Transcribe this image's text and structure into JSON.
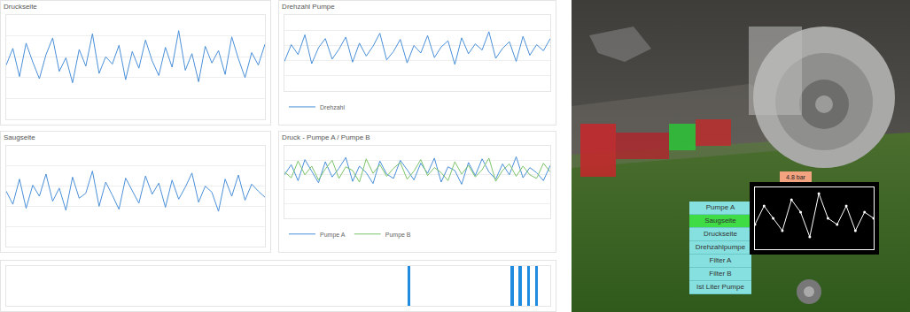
{
  "chart_data": [
    {
      "type": "line",
      "title": "Druckseite",
      "x": [
        0,
        1,
        2,
        3,
        4,
        5,
        6,
        7,
        8,
        9,
        10,
        11,
        12,
        13,
        14,
        15,
        16,
        17,
        18,
        19,
        20,
        21,
        22,
        23,
        24,
        25,
        26,
        27,
        28,
        29,
        30,
        31,
        32,
        33,
        34,
        35,
        36,
        37,
        38,
        39
      ],
      "series": [
        {
          "color": "#4a90d9",
          "values": [
            5.2,
            6.8,
            4.1,
            7.3,
            5.5,
            3.9,
            6.2,
            7.8,
            4.6,
            5.9,
            3.5,
            6.7,
            5.1,
            8.2,
            4.4,
            6.0,
            5.3,
            7.1,
            3.8,
            6.5,
            4.9,
            7.6,
            5.6,
            4.2,
            6.9,
            5.0,
            8.5,
            4.7,
            6.3,
            3.6,
            7.0,
            5.4,
            6.6,
            4.3,
            7.9,
            5.8,
            4.0,
            6.4,
            5.2,
            7.2
          ]
        }
      ],
      "xlim": [
        0,
        39
      ],
      "ylim": [
        0,
        10
      ],
      "yticks": [
        0,
        2,
        4,
        6,
        8,
        10
      ],
      "grid": true,
      "tick_labels": false
    },
    {
      "type": "line",
      "title": "Drehzahl Pumpe",
      "x": [
        0,
        1,
        2,
        3,
        4,
        5,
        6,
        7,
        8,
        9,
        10,
        11,
        12,
        13,
        14,
        15,
        16,
        17,
        18,
        19,
        20,
        21,
        22,
        23,
        24,
        25,
        26,
        27,
        28,
        29,
        30,
        31,
        32,
        33,
        34,
        35,
        36,
        37,
        38,
        39
      ],
      "series": [
        {
          "name": "Drehzahl",
          "color": "#4a90d9",
          "values": [
            3.9,
            6.1,
            4.8,
            7.4,
            3.6,
            5.7,
            6.9,
            4.2,
            5.5,
            7.1,
            3.8,
            6.3,
            4.6,
            5.9,
            7.6,
            4.1,
            5.2,
            6.8,
            3.7,
            6.0,
            5.0,
            7.3,
            4.4,
            5.8,
            6.6,
            3.5,
            7.0,
            4.9,
            6.2,
            5.4,
            7.8,
            4.3,
            5.6,
            6.5,
            3.9,
            7.2,
            4.7,
            6.1,
            5.3,
            6.9
          ]
        }
      ],
      "xlim": [
        0,
        39
      ],
      "ylim": [
        0,
        10
      ],
      "yticks": [
        0,
        2,
        4,
        6,
        8,
        10
      ],
      "grid": true,
      "tick_labels": false,
      "legend": "bottom-left"
    },
    {
      "type": "line",
      "title": "Saugseite",
      "x": [
        0,
        1,
        2,
        3,
        4,
        5,
        6,
        7,
        8,
        9,
        10,
        11,
        12,
        13,
        14,
        15,
        16,
        17,
        18,
        19,
        20,
        21,
        22,
        23,
        24,
        25,
        26,
        27,
        28,
        29,
        30,
        31,
        32,
        33,
        34,
        35,
        36,
        37,
        38,
        39
      ],
      "series": [
        {
          "color": "#4a90d9",
          "values": [
            5.5,
            4.2,
            6.7,
            3.8,
            6.1,
            5.0,
            7.2,
            4.5,
            5.8,
            3.6,
            6.9,
            4.8,
            5.3,
            7.5,
            4.0,
            6.4,
            5.1,
            3.7,
            6.8,
            5.6,
            4.3,
            7.0,
            5.2,
            6.3,
            3.9,
            6.6,
            4.7,
            5.9,
            7.3,
            4.4,
            6.0,
            5.4,
            3.5,
            6.7,
            5.0,
            7.1,
            4.6,
            6.2,
            5.5,
            4.9
          ]
        }
      ],
      "xlim": [
        0,
        39
      ],
      "ylim": [
        0,
        10
      ],
      "yticks": [
        0,
        2,
        4,
        6,
        8,
        10
      ],
      "grid": true,
      "tick_labels": false
    },
    {
      "type": "line",
      "title": "Druck - Pumpe A / Pumpe B",
      "x": [
        0,
        1,
        2,
        3,
        4,
        5,
        6,
        7,
        8,
        9,
        10,
        11,
        12,
        13,
        14,
        15,
        16,
        17,
        18,
        19,
        20,
        21,
        22,
        23,
        24,
        25,
        26,
        27,
        28,
        29,
        30,
        31,
        32,
        33,
        34,
        35,
        36,
        37,
        38,
        39
      ],
      "series": [
        {
          "name": "Pumpe A",
          "color": "#4a90d9",
          "values": [
            6.0,
            7.4,
            5.2,
            8.1,
            6.5,
            4.9,
            7.8,
            5.7,
            6.9,
            8.4,
            5.1,
            7.2,
            6.3,
            4.8,
            7.9,
            6.1,
            5.5,
            8.0,
            6.7,
            5.3,
            7.6,
            6.2,
            8.3,
            5.0,
            7.1,
            6.6,
            4.7,
            7.7,
            5.9,
            8.2,
            6.4,
            5.4,
            7.5,
            6.0,
            8.5,
            5.6,
            7.0,
            6.3,
            5.2,
            7.3
          ]
        },
        {
          "name": "Pumpe B",
          "color": "#7cc46a",
          "values": [
            6.4,
            5.6,
            7.9,
            6.0,
            7.2,
            5.3,
            6.8,
            8.0,
            5.5,
            7.1,
            6.6,
            5.0,
            8.2,
            6.2,
            7.4,
            5.8,
            6.9,
            7.7,
            5.4,
            6.5,
            8.1,
            5.9,
            7.0,
            6.3,
            5.2,
            7.8,
            6.1,
            7.3,
            5.7,
            6.7,
            8.3,
            5.1,
            6.6,
            7.5,
            5.8,
            7.2,
            6.0,
            5.5,
            7.6,
            6.4
          ]
        }
      ],
      "xlim": [
        0,
        39
      ],
      "ylim": [
        0,
        10
      ],
      "yticks": [
        0,
        2,
        4,
        6,
        8,
        10
      ],
      "grid": true,
      "tick_labels": false,
      "legend": "bottom-left"
    },
    {
      "type": "bar",
      "x": [
        74,
        93,
        94.5,
        96,
        97.5
      ],
      "values": [
        1,
        1,
        1,
        1,
        1
      ],
      "color": "#1f8ce0",
      "xlim": [
        0,
        100
      ],
      "ylim": [
        0,
        1
      ],
      "grid": false,
      "tick_labels": false
    },
    {
      "type": "line",
      "x": [
        0,
        1,
        2,
        3,
        4,
        5,
        6,
        7,
        8,
        9,
        10,
        11,
        12,
        13
      ],
      "series": [
        {
          "color": "#ffffff",
          "marker": "circle",
          "values": [
            4,
            7,
            5,
            3,
            8,
            6,
            2,
            9,
            5,
            4,
            7,
            3,
            6,
            5
          ]
        }
      ],
      "xlim": [
        0,
        13
      ],
      "ylim": [
        0,
        10
      ],
      "grid": false,
      "tick_labels": false
    }
  ],
  "scene": {
    "label": "4.8 bar",
    "menu": [
      "Pumpe A",
      "Saugseite",
      "Druckseite",
      "Drehzahlpumpe",
      "Filter A",
      "Filter B",
      "Ist Liter Pumpe"
    ],
    "selected": "Saugseite"
  }
}
